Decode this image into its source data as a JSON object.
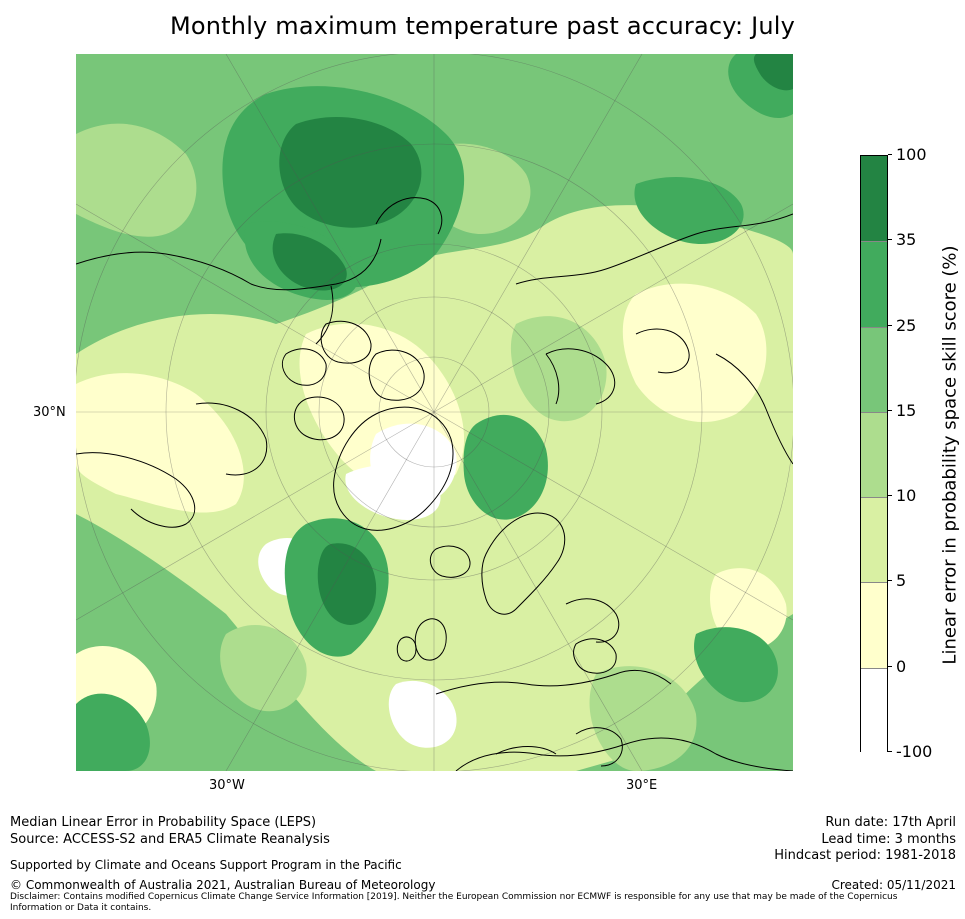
{
  "title": "Monthly maximum temperature past accuracy: July",
  "map": {
    "lat_labels": [
      "30°N"
    ],
    "lon_labels": [
      "30°W",
      "30°E"
    ],
    "projection": "north-polar-stereographic",
    "colors": {
      "c_neg": "#ffffff",
      "c0_5": "#ffffcc",
      "c5_10": "#d9f0a3",
      "c10_15": "#addd8e",
      "c15_25": "#78c679",
      "c25_35": "#41ab5d",
      "c35_100": "#238443",
      "coast": "#000000",
      "grid": "#555555"
    }
  },
  "colorbar": {
    "label": "Linear error in probability space skill score (%)",
    "ticks": [
      "100",
      "35",
      "25",
      "15",
      "10",
      "5",
      "0",
      "-100"
    ],
    "colors": [
      "#238443",
      "#41ab5d",
      "#78c679",
      "#addd8e",
      "#d9f0a3",
      "#ffffcc",
      "#ffffff"
    ]
  },
  "footer": {
    "left_line1": "Median Linear Error in Probability Space (LEPS)",
    "left_line2": "Source: ACCESS-S2 and ERA5 Climate Reanalysis",
    "support": "Supported by Climate and Oceans Support Program in the Pacific",
    "copyright": "© Commonwealth of Australia 2021, Australian Bureau of Meteorology",
    "disclaimer": "Disclaimer: Contains modified Copernicus Climate Change Service Information [2019]. Neither the European Commission nor ECMWF is responsible for any use that may be made of the Copernicus Information or Data it contains.",
    "run_date": "Run date: 17th April",
    "lead_time": "Lead time: 3 months",
    "hindcast": "Hindcast period: 1981-2018",
    "created": "Created: 05/11/2021"
  }
}
